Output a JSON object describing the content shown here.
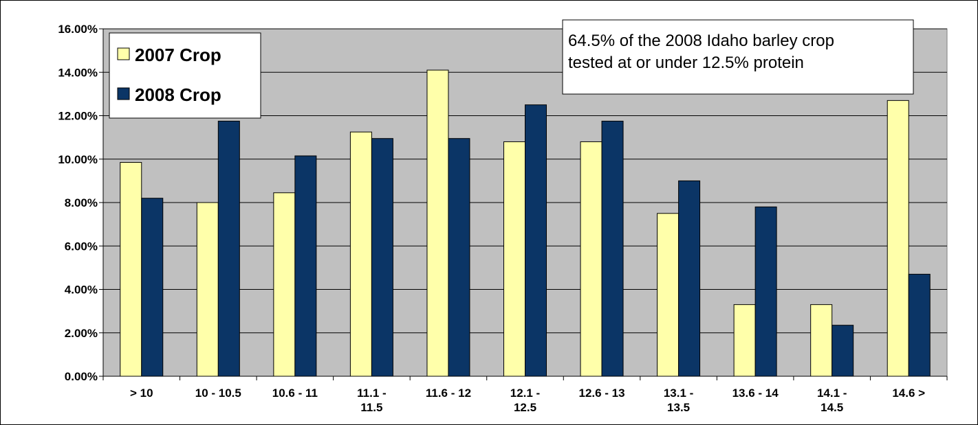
{
  "chart_data": {
    "type": "bar",
    "categories": [
      [
        "> 10"
      ],
      [
        "10 - 10.5"
      ],
      [
        "10.6 - 11"
      ],
      [
        "11.1 -",
        "11.5"
      ],
      [
        "11.6 - 12"
      ],
      [
        "12.1 -",
        "12.5"
      ],
      [
        "12.6 - 13"
      ],
      [
        "13.1 -",
        "13.5"
      ],
      [
        "13.6 - 14"
      ],
      [
        "14.1 -",
        "14.5"
      ],
      [
        "14.6 >"
      ]
    ],
    "series": [
      {
        "name": "2007 Crop",
        "color": "#FFFFAA",
        "values": [
          9.85,
          8.0,
          8.45,
          11.25,
          14.1,
          10.8,
          10.8,
          7.5,
          3.3,
          3.3,
          12.7
        ]
      },
      {
        "name": "2008 Crop",
        "color": "#0B3566",
        "values": [
          8.2,
          11.75,
          10.15,
          10.95,
          10.95,
          12.5,
          11.75,
          9.0,
          7.8,
          2.35,
          4.7
        ]
      }
    ],
    "yticks": [
      "0.00%",
      "2.00%",
      "4.00%",
      "6.00%",
      "8.00%",
      "10.00%",
      "12.00%",
      "14.00%",
      "16.00%"
    ],
    "ylim": [
      0,
      16
    ],
    "grid": true,
    "plot_background": "#C0C0C0",
    "legend_position": "top-left",
    "annotation": [
      "64.5% of the 2008 Idaho barley crop",
      "tested at or under 12.5% protein"
    ],
    "title": "",
    "xlabel": "",
    "ylabel": ""
  }
}
